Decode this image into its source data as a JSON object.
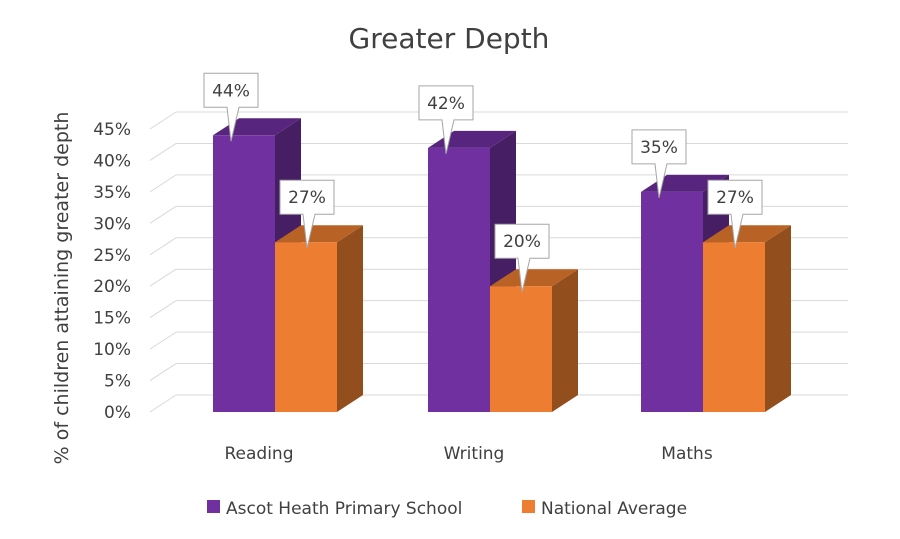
{
  "chart_data": {
    "type": "bar",
    "title": "Greater Depth",
    "ylabel": "% of children attaining greater depth",
    "xlabel": "",
    "categories": [
      "Reading",
      "Writing",
      "Maths"
    ],
    "series": [
      {
        "name": "Ascot Heath Primary School",
        "values": [
          44,
          42,
          35
        ],
        "labels": [
          "44%",
          "42%",
          "35%"
        ],
        "color": "#7030a0"
      },
      {
        "name": "National Average",
        "values": [
          27,
          20,
          27
        ],
        "labels": [
          "27%",
          "20%",
          "27%"
        ],
        "color": "#ed7d31"
      }
    ],
    "y_ticks": [
      "0%",
      "5%",
      "10%",
      "15%",
      "20%",
      "25%",
      "30%",
      "35%",
      "40%",
      "45%"
    ],
    "ylim": [
      0,
      45
    ],
    "grid": true,
    "legend_position": "bottom",
    "style": "3d-clustered-column"
  }
}
